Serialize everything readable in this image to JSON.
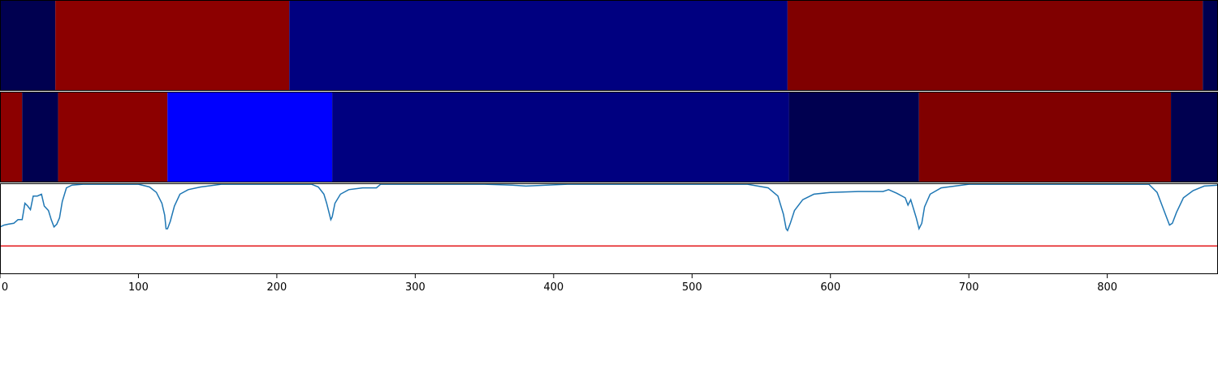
{
  "chart_data": {
    "type": "heatmap",
    "x_range": [
      0,
      880
    ],
    "x_ticks": [
      0,
      100,
      200,
      300,
      400,
      500,
      600,
      700,
      800
    ],
    "x_tick_labels": [
      "0",
      "100",
      "200",
      "300",
      "400",
      "500",
      "600",
      "700",
      "800"
    ],
    "grid": false,
    "panels": [
      {
        "type": "segment-bar",
        "segments": [
          {
            "start": 0,
            "end": 40,
            "color": "#000050"
          },
          {
            "start": 40,
            "end": 209,
            "color": "#8c0000"
          },
          {
            "start": 209,
            "end": 569,
            "color": "#000080"
          },
          {
            "start": 569,
            "end": 869,
            "color": "#800000"
          },
          {
            "start": 869,
            "end": 880,
            "color": "#000050"
          }
        ]
      },
      {
        "type": "segment-bar",
        "segments": [
          {
            "start": 0,
            "end": 16,
            "color": "#8c0000"
          },
          {
            "start": 16,
            "end": 42,
            "color": "#000050"
          },
          {
            "start": 42,
            "end": 121,
            "color": "#8c0000"
          },
          {
            "start": 121,
            "end": 240,
            "color": "#0000ff"
          },
          {
            "start": 240,
            "end": 570,
            "color": "#000080"
          },
          {
            "start": 570,
            "end": 664,
            "color": "#000050"
          },
          {
            "start": 664,
            "end": 846,
            "color": "#800000"
          },
          {
            "start": 846,
            "end": 880,
            "color": "#000050"
          }
        ]
      },
      {
        "type": "line",
        "y_range": [
          0,
          1
        ],
        "threshold": 0.31,
        "threshold_color": "#e31a1c",
        "line_color": "#1f77b4",
        "points": [
          [
            0,
            0.52
          ],
          [
            3,
            0.54
          ],
          [
            6,
            0.55
          ],
          [
            10,
            0.56
          ],
          [
            13,
            0.6
          ],
          [
            16,
            0.6
          ],
          [
            18,
            0.78
          ],
          [
            20,
            0.75
          ],
          [
            22,
            0.71
          ],
          [
            24,
            0.86
          ],
          [
            27,
            0.86
          ],
          [
            30,
            0.88
          ],
          [
            32,
            0.75
          ],
          [
            35,
            0.7
          ],
          [
            37,
            0.6
          ],
          [
            39,
            0.52
          ],
          [
            41,
            0.55
          ],
          [
            43,
            0.62
          ],
          [
            45,
            0.8
          ],
          [
            48,
            0.95
          ],
          [
            52,
            0.98
          ],
          [
            60,
            0.99
          ],
          [
            100,
            0.99
          ],
          [
            108,
            0.96
          ],
          [
            113,
            0.9
          ],
          [
            117,
            0.78
          ],
          [
            119,
            0.65
          ],
          [
            120,
            0.5
          ],
          [
            121,
            0.5
          ],
          [
            123,
            0.58
          ],
          [
            126,
            0.75
          ],
          [
            130,
            0.88
          ],
          [
            136,
            0.93
          ],
          [
            145,
            0.96
          ],
          [
            160,
            0.99
          ],
          [
            225,
            0.99
          ],
          [
            230,
            0.96
          ],
          [
            234,
            0.88
          ],
          [
            236,
            0.78
          ],
          [
            238,
            0.66
          ],
          [
            239,
            0.6
          ],
          [
            240,
            0.63
          ],
          [
            242,
            0.78
          ],
          [
            246,
            0.88
          ],
          [
            252,
            0.93
          ],
          [
            262,
            0.95
          ],
          [
            272,
            0.95
          ],
          [
            275,
            0.99
          ],
          [
            350,
            0.99
          ],
          [
            370,
            0.98
          ],
          [
            380,
            0.97
          ],
          [
            395,
            0.98
          ],
          [
            410,
            0.99
          ],
          [
            540,
            0.99
          ],
          [
            555,
            0.95
          ],
          [
            562,
            0.86
          ],
          [
            566,
            0.66
          ],
          [
            568,
            0.5
          ],
          [
            569,
            0.48
          ],
          [
            571,
            0.56
          ],
          [
            574,
            0.7
          ],
          [
            580,
            0.82
          ],
          [
            588,
            0.88
          ],
          [
            600,
            0.9
          ],
          [
            620,
            0.91
          ],
          [
            638,
            0.91
          ],
          [
            642,
            0.93
          ],
          [
            648,
            0.89
          ],
          [
            654,
            0.84
          ],
          [
            656,
            0.76
          ],
          [
            658,
            0.82
          ],
          [
            660,
            0.72
          ],
          [
            662,
            0.62
          ],
          [
            664,
            0.5
          ],
          [
            666,
            0.56
          ],
          [
            668,
            0.74
          ],
          [
            672,
            0.88
          ],
          [
            680,
            0.95
          ],
          [
            700,
            0.99
          ],
          [
            830,
            0.99
          ],
          [
            836,
            0.9
          ],
          [
            840,
            0.74
          ],
          [
            843,
            0.62
          ],
          [
            845,
            0.54
          ],
          [
            847,
            0.56
          ],
          [
            850,
            0.68
          ],
          [
            855,
            0.84
          ],
          [
            862,
            0.92
          ],
          [
            870,
            0.97
          ],
          [
            880,
            0.98
          ]
        ]
      }
    ]
  }
}
